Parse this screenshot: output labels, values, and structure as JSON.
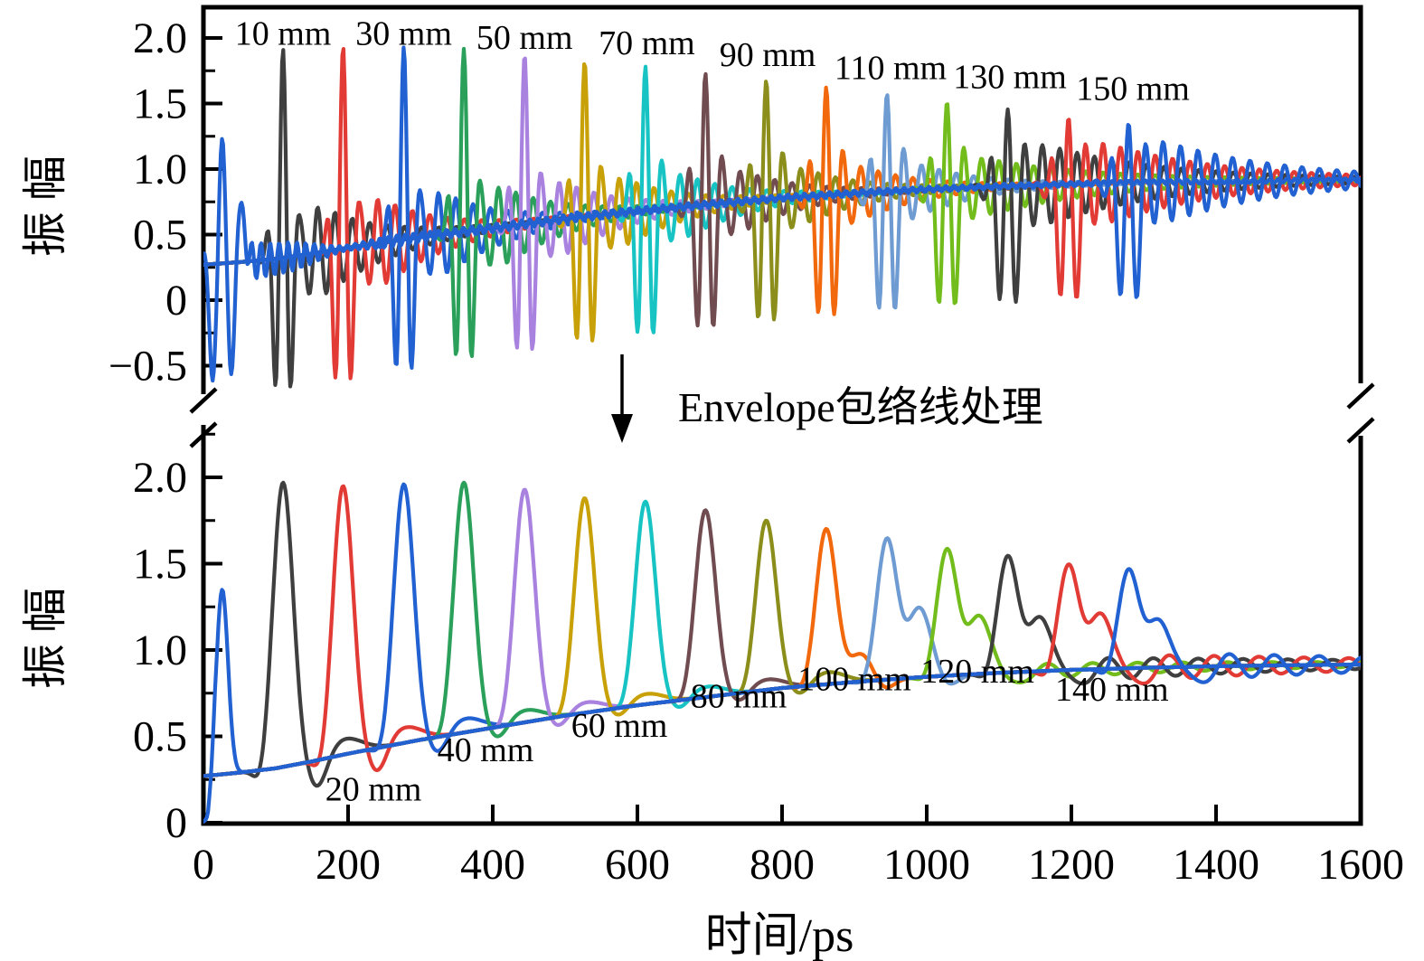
{
  "figure": {
    "y_axis_label": "振幅",
    "x_axis_label": "时间/ps",
    "process_annotation": "Envelope包络线处理",
    "x_ticks": {
      "major": [
        0,
        200,
        400,
        600,
        800,
        1000,
        1200,
        1400,
        1600
      ],
      "labels": [
        "0",
        "200",
        "400",
        "600",
        "800",
        "1000",
        "1200",
        "1400",
        "1600"
      ]
    },
    "top_y_ticks": {
      "major": [
        2.0,
        1.5,
        1.0,
        0.5,
        0,
        -0.5
      ],
      "labels": [
        "2.0",
        "1.5",
        "1.0",
        "0.5",
        "0",
        "−0.5"
      ],
      "minor": [
        1.75,
        1.25,
        0.75,
        0.25,
        -0.25
      ]
    },
    "bottom_y_ticks": {
      "major": [
        2.0,
        1.5,
        1.0,
        0.5,
        0
      ],
      "labels": [
        "2.0",
        "1.5",
        "1.0",
        "0.5",
        "0"
      ],
      "minor": [
        2.25,
        1.75,
        1.25,
        0.75,
        0.25
      ]
    },
    "accent_black": "#000000"
  },
  "chart_data": [
    {
      "type": "line",
      "panel": "top",
      "ylabel": "振幅",
      "xlim": [
        0,
        1600
      ],
      "ylim": [
        -0.75,
        2.23
      ],
      "x_unit": "ps",
      "grid": false,
      "legend": "none",
      "baseline_points": [
        [
          0,
          0.27
        ],
        [
          50,
          0.29
        ],
        [
          100,
          0.315
        ],
        [
          150,
          0.355
        ],
        [
          200,
          0.4
        ],
        [
          300,
          0.48
        ],
        [
          400,
          0.55
        ],
        [
          500,
          0.62
        ],
        [
          600,
          0.68
        ],
        [
          700,
          0.73
        ],
        [
          800,
          0.78
        ],
        [
          900,
          0.815
        ],
        [
          1000,
          0.845
        ],
        [
          1100,
          0.868
        ],
        [
          1200,
          0.885
        ],
        [
          1300,
          0.897
        ],
        [
          1400,
          0.906
        ],
        [
          1500,
          0.912
        ],
        [
          1600,
          0.916
        ]
      ],
      "reference_pulse": {
        "color": "#2161d2",
        "center_ps": 26,
        "peak": 1.2,
        "lobes": [
          [
            0,
            1.03,
            6
          ],
          [
            -12,
            -1.02,
            5
          ],
          [
            12,
            -1.08,
            5
          ],
          [
            24,
            0.46,
            6
          ],
          [
            -24,
            0.4,
            6
          ]
        ],
        "ring": [
          0.42,
          55,
          12.5
        ],
        "ripple": [
          0.042,
          1400,
          11.5
        ]
      },
      "synth": {
        "period_ps": 23,
        "sigma_base": 10.5,
        "sigma_step": 0.5,
        "ring_scale": 0.4,
        "ring_decay": 90,
        "tail_ring_decay": 170,
        "neg_sigma": 6
      },
      "series": [
        {
          "label": "10 mm",
          "color": "#3f3f3f",
          "center_ps": 110,
          "peak": 1.91,
          "neg_boost": 0,
          "tail_ring": 0
        },
        {
          "label": "20 mm",
          "color": "#e23b36",
          "center_ps": 193,
          "peak": 1.93,
          "neg_boost": 0,
          "tail_ring": 0
        },
        {
          "label": "30 mm",
          "color": "#2161d2",
          "center_ps": 277,
          "peak": 1.93,
          "neg_boost": 0,
          "tail_ring": 0
        },
        {
          "label": "40 mm",
          "color": "#2aa05a",
          "center_ps": 360,
          "peak": 1.91,
          "neg_boost": 0,
          "tail_ring": 0
        },
        {
          "label": "50 mm",
          "color": "#a982e0",
          "center_ps": 444,
          "peak": 1.88,
          "neg_boost": 0.035,
          "tail_ring": 0
        },
        {
          "label": "60 mm",
          "color": "#c8a008",
          "center_ps": 527,
          "peak": 1.84,
          "neg_boost": 0.07,
          "tail_ring": 0
        },
        {
          "label": "70 mm",
          "color": "#17c3c3",
          "center_ps": 611,
          "peak": 1.81,
          "neg_boost": 0.105,
          "tail_ring": 0
        },
        {
          "label": "80 mm",
          "color": "#704c50",
          "center_ps": 694,
          "peak": 1.77,
          "neg_boost": 0.14,
          "tail_ring": 0
        },
        {
          "label": "90 mm",
          "color": "#8b8e1a",
          "center_ps": 778,
          "peak": 1.73,
          "neg_boost": 0.175,
          "tail_ring": 0
        },
        {
          "label": "100 mm",
          "color": "#f2690d",
          "center_ps": 861,
          "peak": 1.69,
          "neg_boost": 0.21,
          "tail_ring": 0
        },
        {
          "label": "110 mm",
          "color": "#6d9bd2",
          "center_ps": 945,
          "peak": 1.65,
          "neg_boost": 0.245,
          "tail_ring": 0
        },
        {
          "label": "120 mm",
          "color": "#72bc1c",
          "center_ps": 1028,
          "peak": 1.6,
          "neg_boost": 0.28,
          "tail_ring": 0.2
        },
        {
          "label": "130 mm",
          "color": "#3f3f3f",
          "center_ps": 1112,
          "peak": 1.55,
          "neg_boost": 0.315,
          "tail_ring": 0.42
        },
        {
          "label": "140 mm",
          "color": "#e23b36",
          "center_ps": 1196,
          "peak": 1.5,
          "neg_boost": 0.35,
          "tail_ring": 0.42
        },
        {
          "label": "150 mm",
          "color": "#2161d2",
          "center_ps": 1279,
          "peak": 1.47,
          "neg_boost": 0.385,
          "tail_ring": 0.42
        }
      ],
      "annotations": [
        {
          "text": "10 mm",
          "t": 110,
          "a": 2.03
        },
        {
          "text": "30 mm",
          "t": 277,
          "a": 2.03
        },
        {
          "text": "50 mm",
          "t": 444,
          "a": 2.0
        },
        {
          "text": "70 mm",
          "t": 613,
          "a": 1.96
        },
        {
          "text": "90 mm",
          "t": 780,
          "a": 1.87
        },
        {
          "text": "110 mm",
          "t": 950,
          "a": 1.77
        },
        {
          "text": "130 mm",
          "t": 1115,
          "a": 1.7
        },
        {
          "text": "150 mm",
          "t": 1285,
          "a": 1.61
        }
      ]
    },
    {
      "type": "line",
      "panel": "bottom",
      "ylabel": "振幅",
      "xlabel": "时间/ps",
      "xlim": [
        0,
        1600
      ],
      "ylim": [
        0,
        2.3
      ],
      "x_unit": "ps",
      "grid": false,
      "legend": "none",
      "baseline_points": [
        [
          0,
          0.27
        ],
        [
          50,
          0.29
        ],
        [
          100,
          0.315
        ],
        [
          150,
          0.355
        ],
        [
          200,
          0.4
        ],
        [
          300,
          0.48
        ],
        [
          400,
          0.55
        ],
        [
          500,
          0.62
        ],
        [
          600,
          0.68
        ],
        [
          700,
          0.73
        ],
        [
          800,
          0.78
        ],
        [
          900,
          0.815
        ],
        [
          1000,
          0.845
        ],
        [
          1100,
          0.868
        ],
        [
          1200,
          0.885
        ],
        [
          1300,
          0.897
        ],
        [
          1400,
          0.906
        ],
        [
          1500,
          0.912
        ],
        [
          1600,
          0.916
        ]
      ],
      "reference_pulse": {
        "color": "#2161d2",
        "center_ps": 26,
        "peak": 1.35,
        "sigma": 8
      },
      "synth": {
        "env_sigma": 14,
        "dip_sigma": 13,
        "pre_dip_offset": -30,
        "pre_dip_sigma": 9,
        "pre_dip_scale": 0.6,
        "wiggle_period": 62,
        "wiggle_decay": 400
      },
      "series": [
        {
          "label": "10 mm",
          "color": "#3f3f3f",
          "center_ps": 110,
          "peak": 1.97,
          "dip": 0.18,
          "dip_t": 48,
          "shoulder": 0.09,
          "sh_t": 85,
          "sh_s": 24,
          "wiggle": 0
        },
        {
          "label": "20 mm",
          "color": "#e23b36",
          "center_ps": 193,
          "peak": 1.95,
          "dip": 0.16,
          "dip_t": 48,
          "shoulder": 0.09,
          "sh_t": 85,
          "sh_s": 24,
          "wiggle": 0
        },
        {
          "label": "30 mm",
          "color": "#2161d2",
          "center_ps": 277,
          "peak": 1.96,
          "dip": 0.11,
          "dip_t": 48,
          "shoulder": 0.08,
          "sh_t": 85,
          "sh_s": 24,
          "wiggle": 0
        },
        {
          "label": "40 mm",
          "color": "#2aa05a",
          "center_ps": 360,
          "peak": 1.97,
          "dip": 0.08,
          "dip_t": 48,
          "shoulder": 0.07,
          "sh_t": 85,
          "sh_s": 24,
          "wiggle": 0
        },
        {
          "label": "50 mm",
          "color": "#a982e0",
          "center_ps": 444,
          "peak": 1.93,
          "dip": 0.07,
          "dip_t": 48,
          "shoulder": 0.06,
          "sh_t": 85,
          "sh_s": 24,
          "wiggle": 0
        },
        {
          "label": "60 mm",
          "color": "#c8a008",
          "center_ps": 527,
          "peak": 1.88,
          "dip": 0.06,
          "dip_t": 48,
          "shoulder": 0.06,
          "sh_t": 85,
          "sh_s": 24,
          "wiggle": 0
        },
        {
          "label": "70 mm",
          "color": "#17c3c3",
          "center_ps": 611,
          "peak": 1.86,
          "dip": 0.06,
          "dip_t": 48,
          "shoulder": 0.06,
          "sh_t": 85,
          "sh_s": 24,
          "wiggle": 0
        },
        {
          "label": "80 mm",
          "color": "#704c50",
          "center_ps": 694,
          "peak": 1.81,
          "dip": 0.06,
          "dip_t": 48,
          "shoulder": 0.06,
          "sh_t": 85,
          "sh_s": 24,
          "wiggle": 0
        },
        {
          "label": "90 mm",
          "color": "#8b8e1a",
          "center_ps": 778,
          "peak": 1.75,
          "dip": 0.06,
          "dip_t": 48,
          "shoulder": 0.07,
          "sh_t": 85,
          "sh_s": 24,
          "wiggle": 0
        },
        {
          "label": "100 mm",
          "color": "#f2690d",
          "center_ps": 861,
          "peak": 1.7,
          "dip": 0.06,
          "dip_t": 80,
          "shoulder": 0.16,
          "sh_t": 48,
          "sh_s": 16,
          "wiggle": 0
        },
        {
          "label": "110 mm",
          "color": "#6d9bd2",
          "center_ps": 945,
          "peak": 1.64,
          "dip": 0.06,
          "dip_t": 85,
          "shoulder": 0.4,
          "sh_t": 45,
          "sh_s": 16,
          "wiggle": 0
        },
        {
          "label": "120 mm",
          "color": "#72bc1c",
          "center_ps": 1028,
          "peak": 1.58,
          "dip": 0.07,
          "dip_t": 85,
          "shoulder": 0.34,
          "sh_t": 45,
          "sh_s": 16,
          "wiggle": 0.06
        },
        {
          "label": "130 mm",
          "color": "#3f3f3f",
          "center_ps": 1112,
          "peak": 1.54,
          "dip": 0.08,
          "dip_t": 85,
          "shoulder": 0.32,
          "sh_t": 45,
          "sh_s": 16,
          "wiggle": 0.09
        },
        {
          "label": "140 mm",
          "color": "#e23b36",
          "center_ps": 1196,
          "peak": 1.49,
          "dip": 0.09,
          "dip_t": 85,
          "shoulder": 0.33,
          "sh_t": 45,
          "sh_s": 16,
          "wiggle": 0.1
        },
        {
          "label": "150 mm",
          "color": "#2161d2",
          "center_ps": 1279,
          "peak": 1.46,
          "dip": 0.09,
          "dip_t": 85,
          "shoulder": 0.28,
          "sh_t": 42,
          "sh_s": 16,
          "wiggle": 0.1
        }
      ],
      "annotations": [
        {
          "text": "20 mm",
          "t": 235,
          "a": 0.19
        },
        {
          "text": "40 mm",
          "t": 390,
          "a": 0.42
        },
        {
          "text": "60 mm",
          "t": 575,
          "a": 0.56
        },
        {
          "text": "80 mm",
          "t": 740,
          "a": 0.73
        },
        {
          "text": "100 mm",
          "t": 900,
          "a": 0.83
        },
        {
          "text": "120 mm",
          "t": 1070,
          "a": 0.875
        },
        {
          "text": "140 mm",
          "t": 1256,
          "a": 0.77
        }
      ]
    }
  ]
}
